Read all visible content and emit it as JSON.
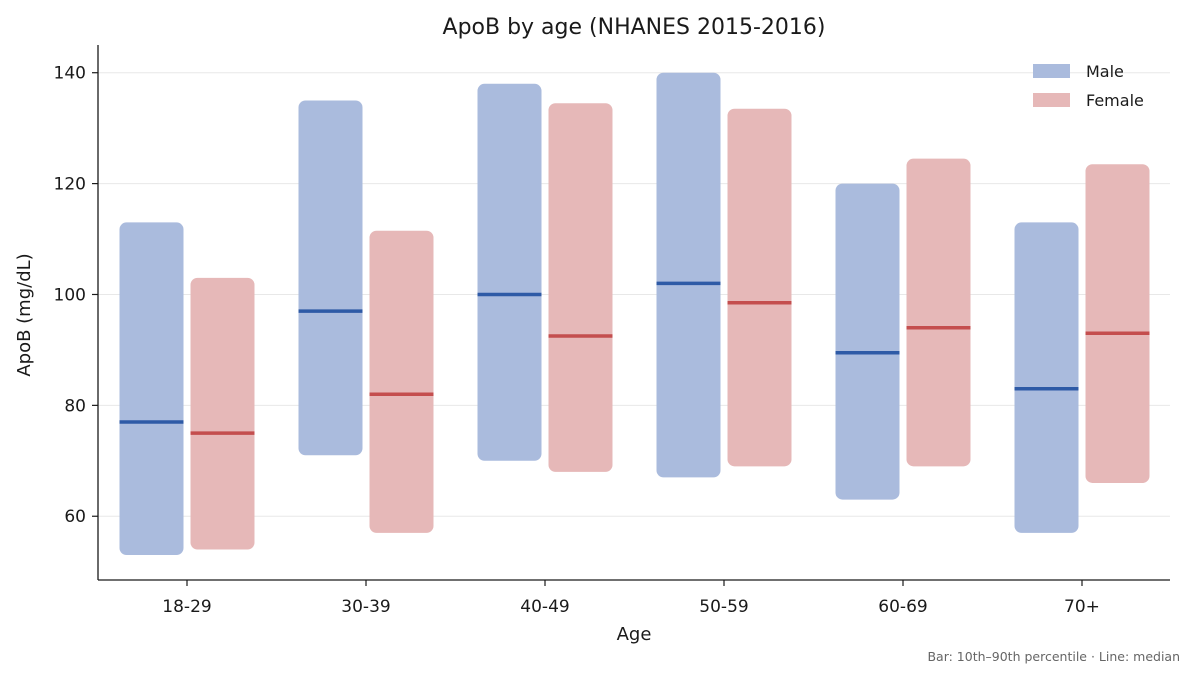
{
  "chart_data": {
    "type": "bar",
    "subtype": "floating-range-with-median",
    "title": "ApoB by age (NHANES 2015-2016)",
    "xlabel": "Age",
    "ylabel": "ApoB (mg/dL)",
    "ylim": [
      48.5,
      145
    ],
    "yticks": [
      60,
      80,
      100,
      120,
      140
    ],
    "grid": "horizontal",
    "legend_position": "top-right",
    "categories": [
      "18-29",
      "30-39",
      "40-49",
      "50-59",
      "60-69",
      "70+"
    ],
    "series": [
      {
        "name": "Male",
        "bar_color": "#aabbdd",
        "line_color": "#2e5aa6",
        "p10": [
          53,
          71,
          70,
          67,
          63,
          57
        ],
        "p90": [
          113,
          135,
          138,
          140,
          120,
          113
        ],
        "median": [
          77,
          97,
          100,
          102,
          89.5,
          83
        ]
      },
      {
        "name": "Female",
        "bar_color": "#e6b8b8",
        "line_color": "#c44e4e",
        "p10": [
          54,
          57,
          68,
          69,
          69,
          66
        ],
        "p90": [
          103,
          111.5,
          134.5,
          133.5,
          124.5,
          123.5
        ],
        "median": [
          75,
          82,
          92.5,
          98.5,
          94,
          93
        ]
      }
    ],
    "footnote": "Bar: 10th–90th percentile  ·  Line: median"
  }
}
